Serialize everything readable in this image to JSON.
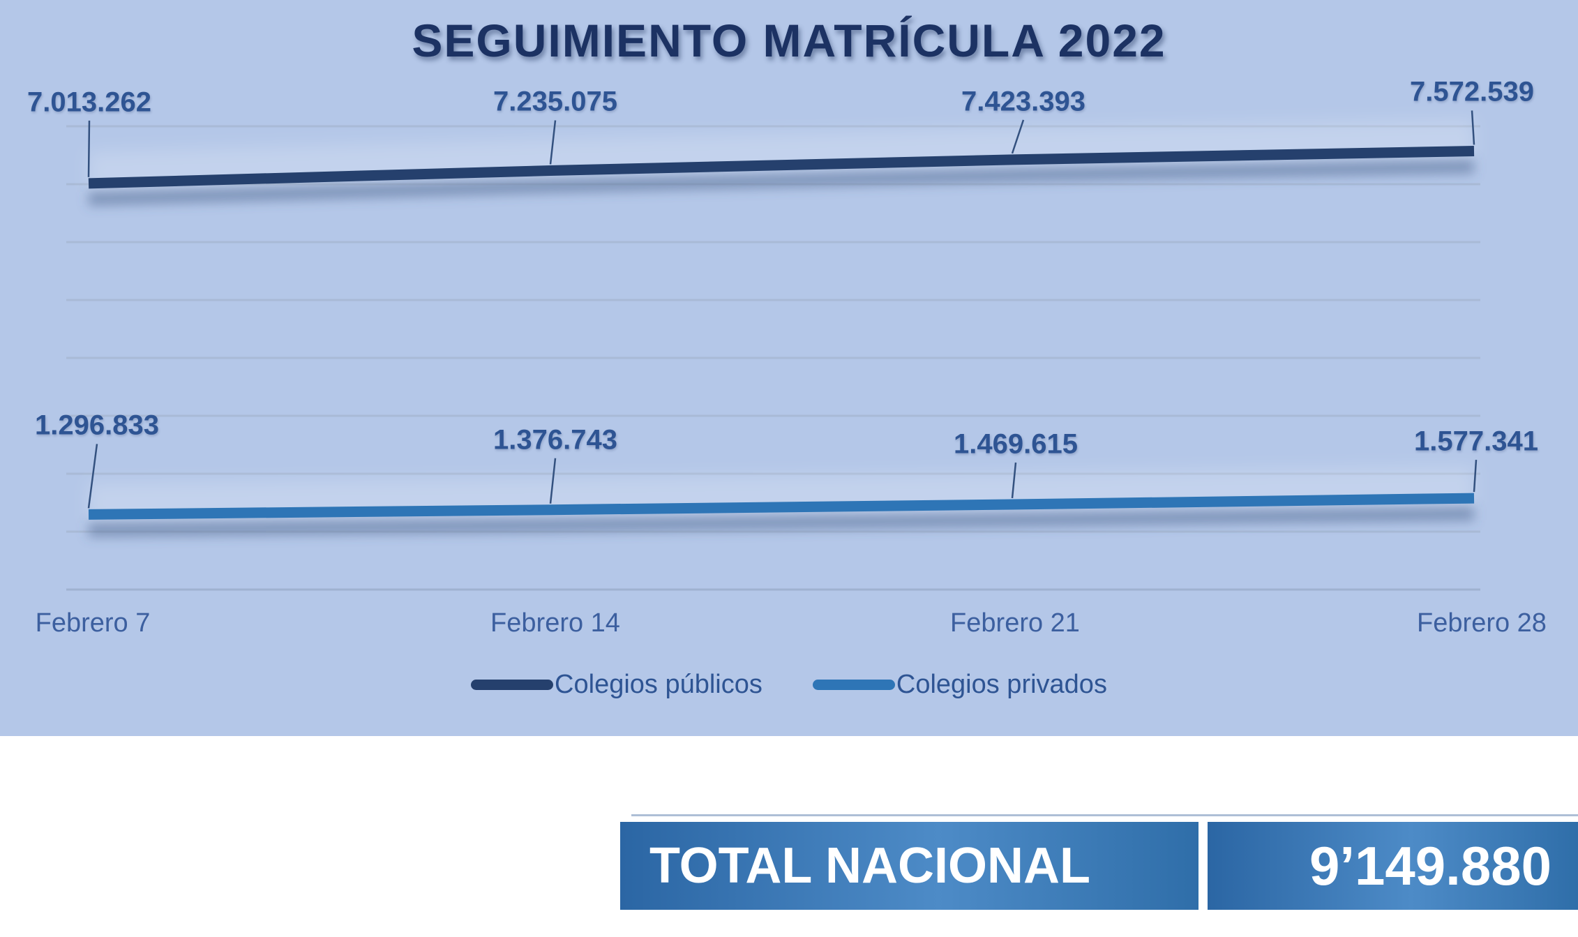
{
  "title": "SEGUIMIENTO MATRÍCULA 2022",
  "chart_data": {
    "type": "line",
    "x": [
      "Febrero 7",
      "Febrero 14",
      "Febrero 21",
      "Febrero 28"
    ],
    "series": [
      {
        "name": "Colegios públicos",
        "color": "#25406d",
        "values": [
          7013262,
          7235075,
          7423393,
          7572539
        ],
        "labels": [
          "7.013.262",
          "7.235.075",
          "7.423.393",
          "7.572.539"
        ]
      },
      {
        "name": "Colegios privados",
        "color": "#2e75b6",
        "values": [
          1296833,
          1376743,
          1469615,
          1577341
        ],
        "labels": [
          "1.296.833",
          "1.376.743",
          "1.469.615",
          "1.577.341"
        ]
      }
    ],
    "ylim": [
      0,
      9000000
    ],
    "gridline_step": 1000000,
    "grid": true,
    "legend_position": "bottom",
    "data_labels_visible": true
  },
  "legend": {
    "items": [
      {
        "label": "Colegios públicos",
        "color": "#25406d"
      },
      {
        "label": "Colegios privados",
        "color": "#2e75b6"
      }
    ]
  },
  "summary": {
    "label": "TOTAL NACIONAL",
    "value": "9’149.880"
  },
  "colors": {
    "panel_background": "#b4c7e8",
    "title_text": "#1c3263",
    "data_label_text": "#2e5493",
    "axis_label_text": "#3c5f9f",
    "gridline": "#a9bad6",
    "series_publicos": "#25406d",
    "series_privados": "#2e75b6",
    "banner_text": "#ffffff",
    "banner_gradient": [
      "#2b66a4",
      "#4d8bc7",
      "#2f6ea9"
    ]
  }
}
